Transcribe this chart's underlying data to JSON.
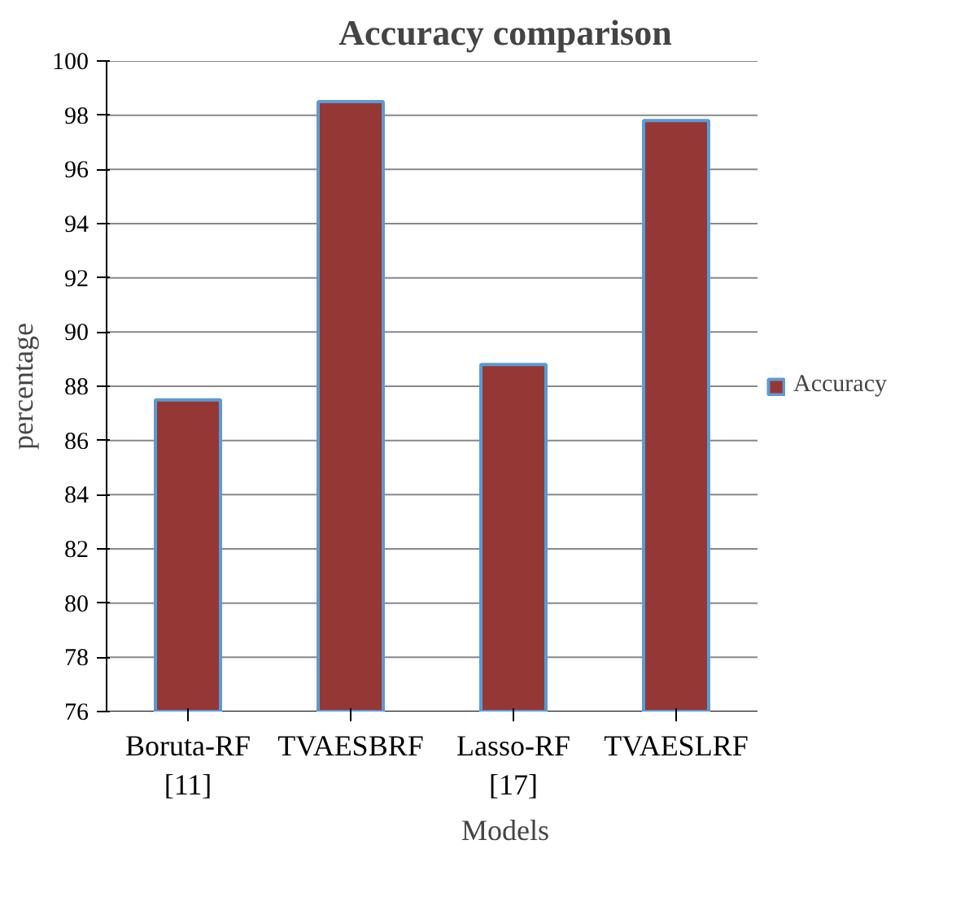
{
  "chart_data": {
    "type": "bar",
    "title": "Accuracy comparison",
    "xlabel": "Models",
    "ylabel": "percentage",
    "categories": [
      "Boruta-RF\n[11]",
      "TVAESBRF",
      "Lasso-RF\n[17]",
      "TVAESLRF"
    ],
    "series": [
      {
        "name": "Accuracy",
        "color": "#953735",
        "values": [
          87.5,
          98.5,
          88.8,
          97.8
        ]
      }
    ],
    "ylim": [
      76,
      100
    ],
    "yticks": [
      76,
      78,
      80,
      82,
      84,
      86,
      88,
      90,
      92,
      94,
      96,
      98,
      100
    ],
    "grid": "y",
    "legend": "right"
  }
}
